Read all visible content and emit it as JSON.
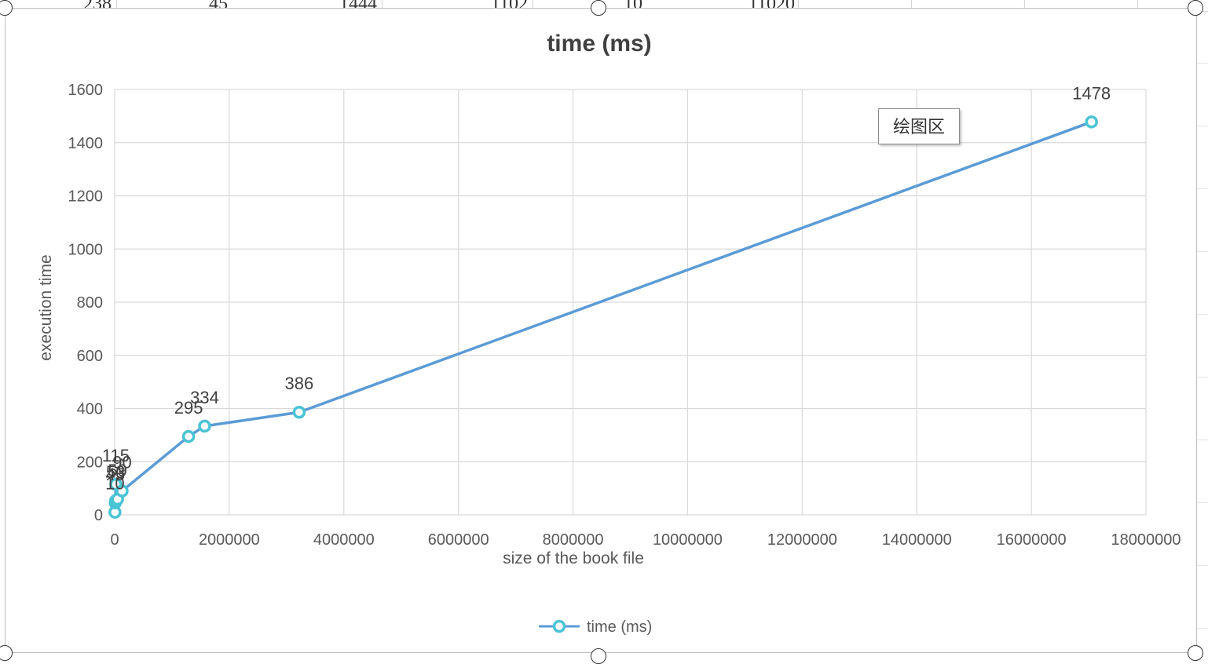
{
  "sheet_row": [
    "238",
    "45",
    "1444",
    "1102",
    "10",
    "11020"
  ],
  "tooltip": "绘图区",
  "colors": {
    "line": "#5b9bd5",
    "marker": "#4bc4d6",
    "grid": "#d9d9d9",
    "text": "#595959"
  },
  "chart_data": {
    "type": "scatter",
    "title": "time (ms)",
    "xlabel": "size of the book file",
    "ylabel": "execution time",
    "xlim": [
      0,
      18000000
    ],
    "ylim": [
      0,
      1600
    ],
    "x_ticks": [
      "0",
      "2000000",
      "4000000",
      "6000000",
      "8000000",
      "10000000",
      "12000000",
      "14000000",
      "16000000",
      "18000000"
    ],
    "y_ticks": [
      "0",
      "200",
      "400",
      "600",
      "800",
      "1000",
      "1200",
      "1400",
      "1600"
    ],
    "grid": true,
    "legend": "bottom",
    "series": [
      {
        "name": "time (ms)",
        "x": [
          5000,
          10000,
          15000,
          20000,
          50000,
          130000,
          1290000,
          1570000,
          3220000,
          17050000
        ],
        "y": [
          10,
          45,
          53,
          115,
          59,
          90,
          295,
          334,
          386,
          1478
        ],
        "labels": [
          "10",
          "45",
          "53",
          "115",
          "59",
          "90",
          "295",
          "334",
          "386",
          "1478"
        ]
      }
    ]
  }
}
